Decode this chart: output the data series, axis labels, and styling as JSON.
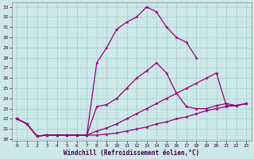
{
  "bg_color": "#cce8e8",
  "grid_color": "#aacccc",
  "line_color": "#990077",
  "xlabel": "Windchill (Refroidissement éolien,°C)",
  "xlim": [
    0,
    23
  ],
  "ylim": [
    20,
    33
  ],
  "xticks": [
    0,
    1,
    2,
    3,
    4,
    5,
    6,
    7,
    8,
    9,
    10,
    11,
    12,
    13,
    14,
    15,
    16,
    17,
    18,
    19,
    20,
    21,
    22,
    23
  ],
  "yticks": [
    20,
    21,
    22,
    23,
    24,
    25,
    26,
    27,
    28,
    29,
    30,
    31,
    32,
    33
  ],
  "curves": [
    {
      "x": [
        0,
        1,
        2,
        3,
        4,
        5,
        6,
        7,
        8,
        9,
        10,
        11,
        12,
        13,
        14,
        15,
        16,
        17,
        18
      ],
      "y": [
        22.0,
        21.5,
        20.3,
        20.4,
        20.4,
        20.4,
        20.4,
        20.4,
        27.5,
        29.0,
        30.8,
        31.5,
        32.0,
        33.0,
        32.5,
        31.0,
        30.0,
        29.5,
        28.0
      ]
    },
    {
      "x": [
        0,
        1,
        2,
        3,
        4,
        5,
        6,
        7,
        8,
        9,
        10,
        11,
        12,
        13,
        14,
        15,
        16,
        17,
        18,
        19,
        20,
        21,
        22,
        23
      ],
      "y": [
        22.0,
        21.5,
        20.3,
        20.4,
        20.4,
        20.4,
        20.4,
        20.4,
        23.2,
        23.4,
        24.0,
        25.0,
        26.0,
        26.7,
        27.5,
        26.5,
        24.5,
        23.2,
        23.0,
        23.0,
        23.3,
        23.5,
        23.3,
        23.5
      ]
    },
    {
      "x": [
        0,
        1,
        2,
        3,
        4,
        5,
        6,
        7,
        8,
        9,
        10,
        11,
        12,
        13,
        14,
        15,
        16,
        17,
        18,
        19,
        20,
        21,
        22,
        23
      ],
      "y": [
        22.0,
        21.5,
        20.3,
        20.4,
        20.4,
        20.4,
        20.4,
        20.4,
        20.8,
        21.1,
        21.5,
        22.0,
        22.5,
        23.0,
        23.5,
        24.0,
        24.5,
        25.0,
        25.5,
        26.0,
        26.5,
        23.3,
        23.3,
        23.5
      ]
    },
    {
      "x": [
        0,
        1,
        2,
        3,
        4,
        5,
        6,
        7,
        8,
        9,
        10,
        11,
        12,
        13,
        14,
        15,
        16,
        17,
        18,
        19,
        20,
        21,
        22,
        23
      ],
      "y": [
        22.0,
        21.5,
        20.3,
        20.4,
        20.4,
        20.4,
        20.4,
        20.4,
        20.4,
        20.5,
        20.6,
        20.8,
        21.0,
        21.2,
        21.5,
        21.7,
        22.0,
        22.2,
        22.5,
        22.8,
        23.0,
        23.2,
        23.3,
        23.5
      ]
    }
  ]
}
